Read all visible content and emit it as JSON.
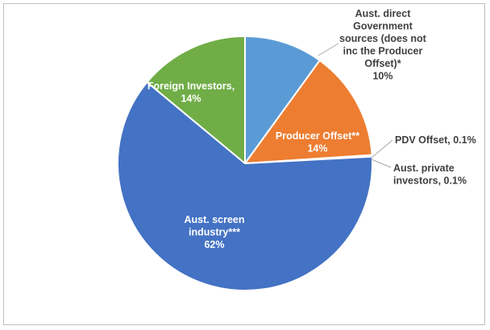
{
  "chart_data": {
    "type": "pie",
    "title": "",
    "slices": [
      {
        "name": "Aust. direct Government sources (does not inc the Producer Offset)*",
        "value": 10,
        "value_label": "10%",
        "color": "#5b9bd5",
        "label_lines": [
          "Aust. direct",
          "Government",
          "sources (does not",
          "inc the Producer",
          "Offset)*",
          "10%"
        ]
      },
      {
        "name": "Producer Offset**",
        "value": 14,
        "value_label": "14%",
        "color": "#ed7d31",
        "label_lines": [
          "Producer Offset**",
          "14%"
        ]
      },
      {
        "name": "PDV Offset",
        "value": 0.1,
        "value_label": "0.1%",
        "color": "#a5a5a5",
        "label_lines": [
          "PDV Offset, 0.1%"
        ]
      },
      {
        "name": "Aust. private investors",
        "value": 0.1,
        "value_label": "0.1%",
        "color": "#ffc000",
        "label_lines": [
          "Aust. private",
          "investors, 0.1%"
        ]
      },
      {
        "name": "Aust. screen industry***",
        "value": 62,
        "value_label": "62%",
        "color": "#4472c4",
        "label_lines": [
          "Aust. screen",
          "industry***",
          "62%"
        ]
      },
      {
        "name": "Foreign Investors",
        "value": 14,
        "value_label": "14%",
        "color": "#70ad47",
        "label_lines": [
          "Foreign Investors,",
          "14%"
        ]
      }
    ],
    "legend": "none",
    "start_angle": "12 o'clock, clockwise"
  }
}
